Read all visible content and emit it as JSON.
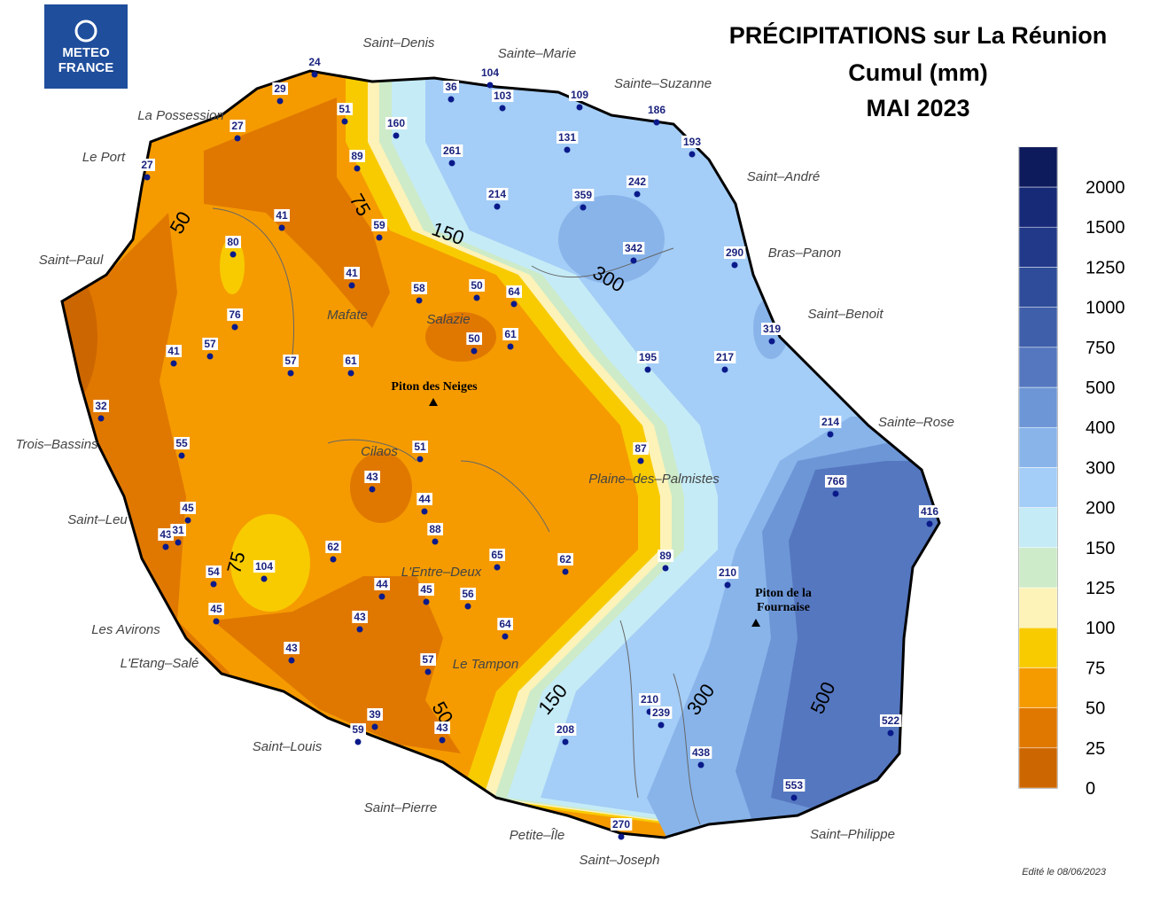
{
  "header": {
    "logo": [
      "METEO",
      "FRANCE"
    ],
    "title": [
      "PRÉCIPITATIONS sur La Réunion",
      "Cumul (mm)",
      "MAI 2023"
    ]
  },
  "legend": {
    "labels": [
      0,
      25,
      50,
      75,
      100,
      125,
      150,
      200,
      300,
      400,
      500,
      750,
      1000,
      1250,
      1500,
      2000
    ],
    "colors": [
      "#cc6600",
      "#e07800",
      "#f59b00",
      "#f8cb00",
      "#fdf2b8",
      "#cdebc8",
      "#c5ebf6",
      "#a4cdf7",
      "#88b4ea",
      "#6d96d6",
      "#5577c0",
      "#3f5fab",
      "#2f4c9a",
      "#22398a",
      "#172a78",
      "#0d1a5c"
    ]
  },
  "places": [
    {
      "label": "Saint–Denis"
    },
    {
      "label": "Sainte–Marie"
    },
    {
      "label": "Sainte–Suzanne"
    },
    {
      "label": "La Possession"
    },
    {
      "label": "Le Port"
    },
    {
      "label": "Saint–André"
    },
    {
      "label": "Bras–Panon"
    },
    {
      "label": "Saint–Paul"
    },
    {
      "label": "Saint–Benoit"
    },
    {
      "label": "Mafate"
    },
    {
      "label": "Salazie"
    },
    {
      "label": "Piton des Neiges",
      "bold": true
    },
    {
      "label": "Sainte–Rose"
    },
    {
      "label": "Trois–Bassins"
    },
    {
      "label": "Cilaos"
    },
    {
      "label": "Plaine–des–Palmistes"
    },
    {
      "label": "Saint–Leu"
    },
    {
      "label": "L'Entre–Deux"
    },
    {
      "label": [
        "Piton de la",
        "Fournaise"
      ],
      "bold": true
    },
    {
      "label": "Les Avirons"
    },
    {
      "label": "L'Etang–Salé"
    },
    {
      "label": "Le Tampon"
    },
    {
      "label": "Saint–Louis"
    },
    {
      "label": "Saint–Pierre"
    },
    {
      "label": "Petite–Île"
    },
    {
      "label": "Saint–Philippe"
    },
    {
      "label": "Saint–Joseph"
    }
  ],
  "stations": [
    24,
    29,
    27,
    27,
    51,
    36,
    104,
    103,
    109,
    186,
    193,
    160,
    131,
    261,
    89,
    214,
    359,
    242,
    41,
    80,
    59,
    342,
    290,
    41,
    58,
    50,
    64,
    319,
    76,
    50,
    61,
    57,
    41,
    57,
    61,
    195,
    217,
    32,
    214,
    55,
    51,
    87,
    43,
    766,
    44,
    45,
    416,
    43,
    31,
    88,
    62,
    65,
    62,
    104,
    54,
    89,
    210,
    44,
    45,
    56,
    45,
    43,
    64,
    43,
    57,
    210,
    239,
    39,
    59,
    43,
    208,
    522,
    438,
    553,
    270
  ],
  "contour_labels": [
    50,
    75,
    150,
    300,
    75,
    150,
    300,
    500,
    50
  ],
  "footer": "Edité le 08/06/2023"
}
